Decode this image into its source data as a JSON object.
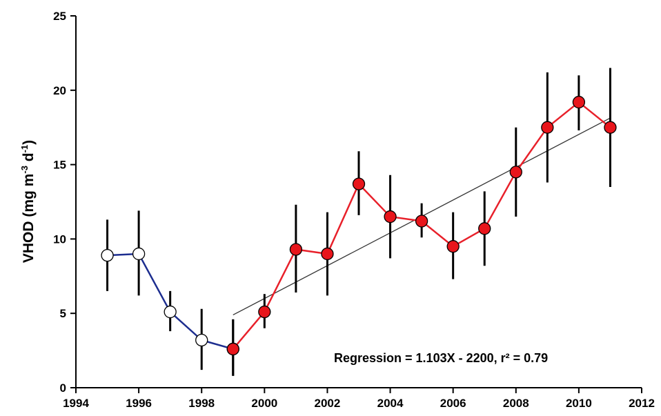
{
  "chart_data": {
    "type": "line",
    "title": "",
    "xlabel": "",
    "ylabel": "VHOD  (mg m",
    "ylabel_sup1": "-3",
    "ylabel_mid": " d",
    "ylabel_sup2": "-1",
    "ylabel_end": ")",
    "xlim": [
      1994,
      2012
    ],
    "ylim": [
      0,
      25
    ],
    "x_ticks": [
      "1994",
      "1996",
      "1998",
      "2000",
      "2002",
      "2004",
      "2006",
      "2008",
      "2010",
      "2012"
    ],
    "y_ticks": [
      "0",
      "5",
      "10",
      "15",
      "20",
      "25"
    ],
    "grid": false,
    "series": [
      {
        "color": "#1c2d8f",
        "marker_fill": "#ffffff",
        "points": [
          {
            "x": 1995,
            "y": 8.9,
            "err_low": 6.5,
            "err_high": 11.3
          },
          {
            "x": 1996,
            "y": 9.0,
            "err_low": 6.2,
            "err_high": 11.9
          },
          {
            "x": 1997,
            "y": 5.1,
            "err_low": 3.8,
            "err_high": 6.5
          },
          {
            "x": 1998,
            "y": 3.2,
            "err_low": 1.2,
            "err_high": 5.3
          },
          {
            "x": 1999,
            "y": 2.6,
            "err_low": 0.8,
            "err_high": 4.6
          }
        ]
      },
      {
        "color": "#e8202a",
        "marker_fill": "#e8151b",
        "points": [
          {
            "x": 1999,
            "y": 2.6,
            "err_low": 0.8,
            "err_high": 4.6
          },
          {
            "x": 2000,
            "y": 5.1,
            "err_low": 4.0,
            "err_high": 6.3
          },
          {
            "x": 2001,
            "y": 9.3,
            "err_low": 6.4,
            "err_high": 12.3
          },
          {
            "x": 2002,
            "y": 9.0,
            "err_low": 6.2,
            "err_high": 11.8
          },
          {
            "x": 2003,
            "y": 13.7,
            "err_low": 11.6,
            "err_high": 15.9
          },
          {
            "x": 2004,
            "y": 11.5,
            "err_low": 8.7,
            "err_high": 14.3
          },
          {
            "x": 2005,
            "y": 11.2,
            "err_low": 10.1,
            "err_high": 12.4
          },
          {
            "x": 2006,
            "y": 9.5,
            "err_low": 7.3,
            "err_high": 11.8
          },
          {
            "x": 2007,
            "y": 10.7,
            "err_low": 8.2,
            "err_high": 13.2
          },
          {
            "x": 2008,
            "y": 14.5,
            "err_low": 11.5,
            "err_high": 17.5
          },
          {
            "x": 2009,
            "y": 17.5,
            "err_low": 13.8,
            "err_high": 21.2
          },
          {
            "x": 2010,
            "y": 19.2,
            "err_low": 17.3,
            "err_high": 21.0
          },
          {
            "x": 2011,
            "y": 17.5,
            "err_low": 13.5,
            "err_high": 21.5
          }
        ]
      }
    ],
    "regression": {
      "x_start": 1999,
      "x_end": 2011,
      "slope": 1.103,
      "intercept": -2200,
      "color": "#333333"
    },
    "annotation": "Regression = 1.103X - 2200, r² = 0.79"
  }
}
